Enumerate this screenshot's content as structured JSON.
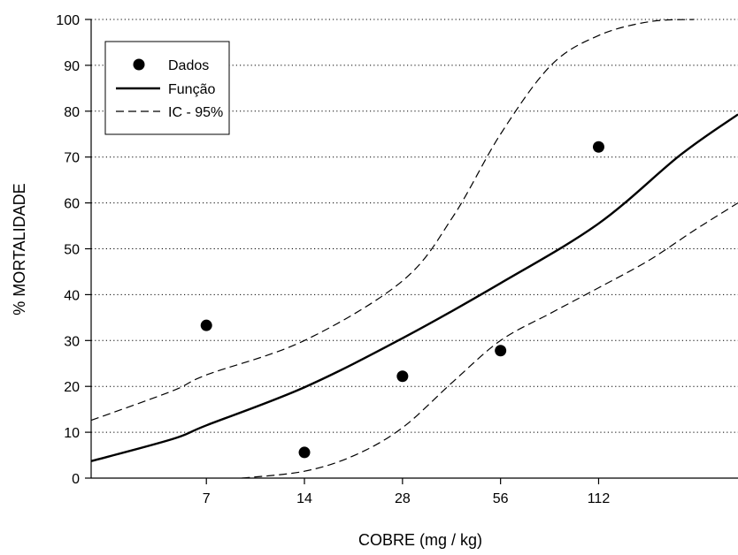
{
  "chart_data": {
    "type": "scatter",
    "xlabel": "COBRE (mg / kg)",
    "ylabel": "% MORTALIDADE",
    "x_scale": "log",
    "xlim": [
      3.1,
      300
    ],
    "ylim": [
      0,
      100
    ],
    "x_ticks": [
      7,
      14,
      28,
      56,
      112
    ],
    "y_ticks": [
      0,
      10,
      20,
      30,
      40,
      50,
      60,
      70,
      80,
      90,
      100
    ],
    "grid": "horizontal-dotted",
    "legend": {
      "placement": "top-left",
      "entries": [
        {
          "key": "dados",
          "label": "Dados",
          "style": "marker"
        },
        {
          "key": "funcao",
          "label": "Função",
          "style": "solid"
        },
        {
          "key": "ic",
          "label": "IC - 95%",
          "style": "dashed"
        }
      ]
    },
    "series": [
      {
        "key": "dados",
        "name": "Dados",
        "style": "marker",
        "x": [
          7,
          14,
          28,
          56,
          112
        ],
        "y": [
          33.3,
          5.6,
          22.2,
          27.8,
          72.2
        ]
      },
      {
        "key": "funcao",
        "name": "Função",
        "style": "solid",
        "x": [
          3.1,
          5.5,
          7,
          14,
          28,
          56,
          112,
          200,
          300
        ],
        "y": [
          3.7,
          8.5,
          11.5,
          19.8,
          30.5,
          42.5,
          55.5,
          70.5,
          79.3
        ]
      },
      {
        "key": "ic_upper",
        "name": "IC - 95%",
        "style": "dashed",
        "x": [
          3.1,
          5.5,
          7,
          14,
          28,
          40,
          56,
          80,
          112,
          160,
          220
        ],
        "y": [
          12.6,
          19,
          22.5,
          30,
          43,
          57,
          75,
          90,
          96.5,
          99.5,
          100
        ]
      },
      {
        "key": "ic_lower",
        "name": "IC - 95%",
        "style": "dashed",
        "x": [
          9,
          14,
          20,
          28,
          40,
          56,
          80,
          112,
          160,
          220,
          300
        ],
        "y": [
          0,
          1.5,
          5,
          11,
          21,
          30,
          36,
          41.5,
          47.5,
          54,
          60
        ]
      }
    ]
  }
}
